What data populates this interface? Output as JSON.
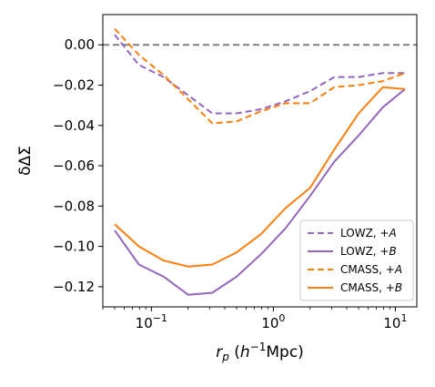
{
  "chart_data": {
    "type": "line",
    "xscale": "log",
    "xlim": [
      0.04,
      15
    ],
    "ylim": [
      -0.13,
      0.015
    ],
    "x_ticks": [
      {
        "value": 0.1,
        "base": "10",
        "exp": "−1"
      },
      {
        "value": 1,
        "base": "10",
        "exp": "0"
      },
      {
        "value": 10,
        "base": "10",
        "exp": "1"
      }
    ],
    "y_ticks": [
      {
        "value": 0.0,
        "label": "0.00"
      },
      {
        "value": -0.02,
        "label": "−0.02"
      },
      {
        "value": -0.04,
        "label": "−0.04"
      },
      {
        "value": -0.06,
        "label": "−0.06"
      },
      {
        "value": -0.08,
        "label": "−0.08"
      },
      {
        "value": -0.1,
        "label": "−0.10"
      },
      {
        "value": -0.12,
        "label": "−0.12"
      }
    ],
    "reference_line": {
      "y": 0.0,
      "color": "#808080",
      "style": "dashed"
    },
    "ylabel": "δΔΣ",
    "xlabel": {
      "var": "r",
      "sub": "p",
      "open": " (",
      "h": "h",
      "sup": "−1",
      "unit": "Mpc)"
    },
    "x": [
      0.05,
      0.079,
      0.126,
      0.2,
      0.316,
      0.5,
      0.79,
      1.26,
      2.0,
      3.16,
      5.0,
      7.9,
      12.0
    ],
    "series": [
      {
        "name": "LOWZ, +",
        "name_italic": "A",
        "color": "#9467bd",
        "style": "dashed",
        "values": [
          0.005,
          -0.01,
          -0.016,
          -0.025,
          -0.034,
          -0.034,
          -0.032,
          -0.028,
          -0.023,
          -0.016,
          -0.016,
          -0.014,
          -0.014
        ]
      },
      {
        "name": "LOWZ, +",
        "name_italic": "B",
        "color": "#9467bd",
        "style": "solid",
        "values": [
          -0.092,
          -0.109,
          -0.115,
          -0.124,
          -0.123,
          -0.115,
          -0.104,
          -0.091,
          -0.075,
          -0.058,
          -0.045,
          -0.031,
          -0.022
        ]
      },
      {
        "name": "CMASS, +",
        "name_italic": "A",
        "color": "#ff7f0e",
        "style": "dashed",
        "values": [
          0.008,
          -0.005,
          -0.015,
          -0.027,
          -0.039,
          -0.038,
          -0.033,
          -0.029,
          -0.029,
          -0.021,
          -0.02,
          -0.018,
          -0.014
        ]
      },
      {
        "name": "CMASS, +",
        "name_italic": "B",
        "color": "#ff7f0e",
        "style": "solid",
        "values": [
          -0.089,
          -0.1,
          -0.107,
          -0.11,
          -0.109,
          -0.103,
          -0.094,
          -0.081,
          -0.071,
          -0.052,
          -0.034,
          -0.021,
          -0.022
        ]
      }
    ],
    "legend_position": "lower-right",
    "grid": false
  }
}
